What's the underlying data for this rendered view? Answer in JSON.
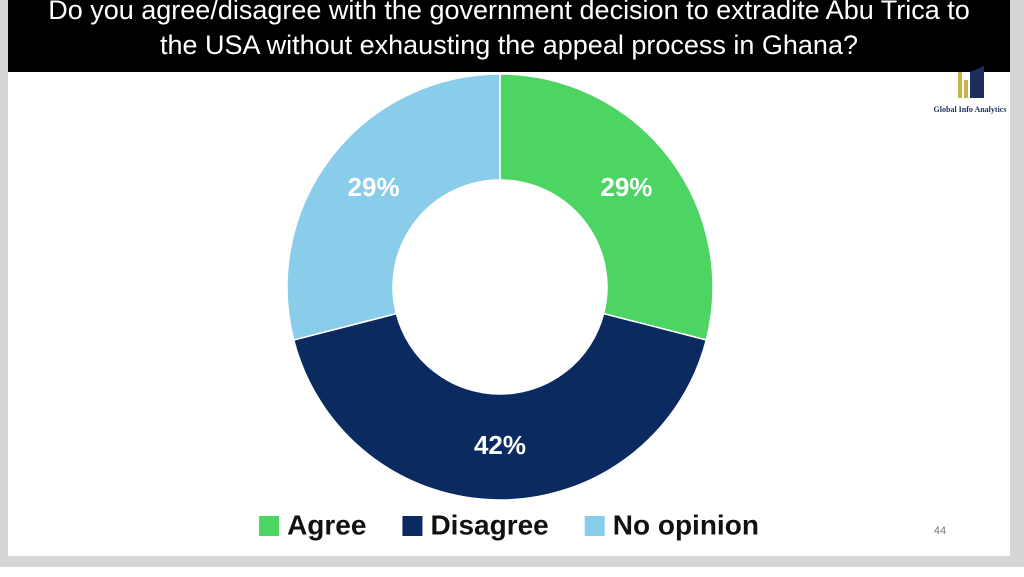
{
  "chart_data": {
    "type": "pie",
    "donut": true,
    "title": "Do you agree/disagree with the government decision to extradite Abu Trica to the USA without exhausting the appeal process in Ghana?",
    "categories": [
      "Agree",
      "Disagree",
      "No opinion"
    ],
    "values": [
      29,
      42,
      29
    ],
    "value_labels": [
      "29%",
      "42%",
      "29%"
    ],
    "colors": [
      "#4cd563",
      "#0b2a5f",
      "#89cdeb"
    ],
    "legend": "bottom"
  },
  "logo": "Global Info Analytics",
  "slide_number": "44"
}
